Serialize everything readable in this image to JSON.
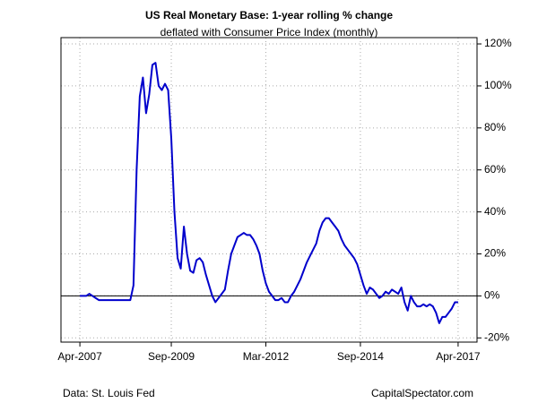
{
  "chart_data": {
    "type": "line",
    "title": "US Real Monetary Base: 1-year rolling % change",
    "subtitle": "deflated with Consumer Price Index (monthly)",
    "source": "Data: St. Louis Fed",
    "credit": "CapitalSpectator.com",
    "x": [
      "2007-04",
      "2007-05",
      "2007-06",
      "2007-07",
      "2007-08",
      "2007-09",
      "2007-10",
      "2007-11",
      "2007-12",
      "2008-01",
      "2008-02",
      "2008-03",
      "2008-04",
      "2008-05",
      "2008-06",
      "2008-07",
      "2008-08",
      "2008-09",
      "2008-10",
      "2008-11",
      "2008-12",
      "2009-01",
      "2009-02",
      "2009-03",
      "2009-04",
      "2009-05",
      "2009-06",
      "2009-07",
      "2009-08",
      "2009-09",
      "2009-10",
      "2009-11",
      "2009-12",
      "2010-01",
      "2010-02",
      "2010-03",
      "2010-04",
      "2010-05",
      "2010-06",
      "2010-07",
      "2010-08",
      "2010-09",
      "2010-10",
      "2010-11",
      "2010-12",
      "2011-01",
      "2011-02",
      "2011-03",
      "2011-04",
      "2011-05",
      "2011-06",
      "2011-07",
      "2011-08",
      "2011-09",
      "2011-10",
      "2011-11",
      "2011-12",
      "2012-01",
      "2012-02",
      "2012-03",
      "2012-04",
      "2012-05",
      "2012-06",
      "2012-07",
      "2012-08",
      "2012-09",
      "2012-10",
      "2012-11",
      "2012-12",
      "2013-01",
      "2013-02",
      "2013-03",
      "2013-04",
      "2013-05",
      "2013-06",
      "2013-07",
      "2013-08",
      "2013-09",
      "2013-10",
      "2013-11",
      "2013-12",
      "2014-01",
      "2014-02",
      "2014-03",
      "2014-04",
      "2014-05",
      "2014-06",
      "2014-07",
      "2014-08",
      "2014-09",
      "2014-10",
      "2014-11",
      "2014-12",
      "2015-01",
      "2015-02",
      "2015-03",
      "2015-04",
      "2015-05",
      "2015-06",
      "2015-07",
      "2015-08",
      "2015-09",
      "2015-10",
      "2015-11",
      "2015-12",
      "2016-01",
      "2016-02",
      "2016-03",
      "2016-04",
      "2016-05",
      "2016-06",
      "2016-07",
      "2016-08",
      "2016-09",
      "2016-10",
      "2016-11",
      "2016-12",
      "2017-01",
      "2017-02",
      "2017-03",
      "2017-04"
    ],
    "series": [
      {
        "color": "#0000cc",
        "values": [
          0,
          0,
          0,
          1,
          0,
          -1,
          -2,
          -2,
          -2,
          -2,
          -2,
          -2,
          -2,
          -2,
          -2,
          -2,
          -2,
          5,
          60,
          95,
          104,
          87,
          96,
          110,
          111,
          100,
          98,
          101,
          98,
          75,
          40,
          18,
          13,
          33,
          20,
          12,
          11,
          17,
          18,
          16,
          10,
          5,
          0,
          -3,
          -1,
          1,
          3,
          12,
          20,
          24,
          28,
          29,
          30,
          29,
          29,
          27,
          24,
          20,
          12,
          6,
          2,
          0,
          -2,
          -2,
          -1,
          -3,
          -3,
          0,
          2,
          5,
          8,
          12,
          16,
          19,
          22,
          25,
          31,
          35,
          37,
          37,
          35,
          33,
          31,
          27,
          24,
          22,
          20,
          18,
          15,
          10,
          5,
          1,
          4,
          3,
          1,
          -1,
          0,
          2,
          1,
          3,
          2,
          1,
          4,
          -3,
          -7,
          0,
          -3,
          -5,
          -5,
          -4,
          -5,
          -4,
          -5,
          -8,
          -13,
          -10,
          -10,
          -8,
          -6,
          -3,
          -3
        ]
      }
    ],
    "xlim": [
      "2006-10",
      "2017-10"
    ],
    "xticks": [
      {
        "value": "2007-04",
        "label": "Apr-2007"
      },
      {
        "value": "2009-09",
        "label": "Sep-2009"
      },
      {
        "value": "2012-03",
        "label": "Mar-2012"
      },
      {
        "value": "2014-09",
        "label": "Sep-2014"
      },
      {
        "value": "2017-04",
        "label": "Apr-2017"
      }
    ],
    "ylim": [
      -22,
      123
    ],
    "yticks": [
      {
        "value": -20,
        "label": "-20%"
      },
      {
        "value": 0,
        "label": "0%"
      },
      {
        "value": 20,
        "label": "20%"
      },
      {
        "value": 40,
        "label": "40%"
      },
      {
        "value": 60,
        "label": "60%"
      },
      {
        "value": 80,
        "label": "80%"
      },
      {
        "value": 100,
        "label": "100%"
      },
      {
        "value": 120,
        "label": "120%"
      }
    ],
    "grid": true
  }
}
